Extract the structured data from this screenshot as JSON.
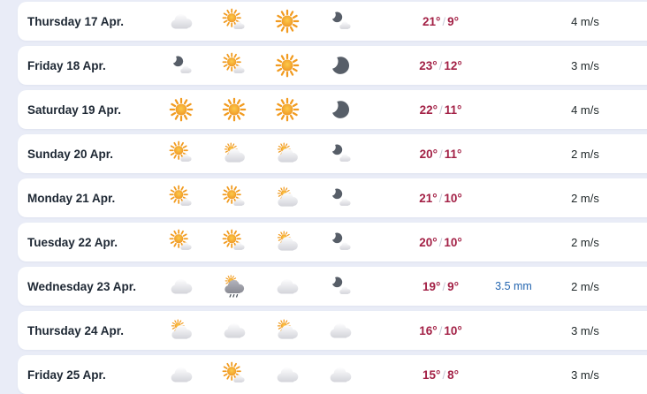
{
  "colors": {
    "background": "#e9ecf7",
    "card": "#ffffff",
    "day_text": "#1d2733",
    "temperature_text": "#a32146",
    "precipitation_text": "#2566b0",
    "wind_text": "#21292b",
    "sun": "#f29d25",
    "moon": "#575e68"
  },
  "forecast": {
    "temp_separator": "/",
    "rows": [
      {
        "day": "Thursday 17 Apr.",
        "icons": [
          "cloudy",
          "fair-day",
          "clear-day",
          "fair-night"
        ],
        "temp_high": "21°",
        "temp_low": "9°",
        "precipitation": "",
        "wind": "4 m/s"
      },
      {
        "day": "Friday 18 Apr.",
        "icons": [
          "fair-night",
          "fair-day",
          "clear-day",
          "clear-night"
        ],
        "temp_high": "23°",
        "temp_low": "12°",
        "precipitation": "",
        "wind": "3 m/s"
      },
      {
        "day": "Saturday 19 Apr.",
        "icons": [
          "clear-day",
          "clear-day",
          "clear-day",
          "clear-night"
        ],
        "temp_high": "22°",
        "temp_low": "11°",
        "precipitation": "",
        "wind": "4 m/s"
      },
      {
        "day": "Sunday 20 Apr.",
        "icons": [
          "fair-day",
          "partly-cloudy-day",
          "partly-cloudy-day",
          "fair-night"
        ],
        "temp_high": "20°",
        "temp_low": "11°",
        "precipitation": "",
        "wind": "2 m/s"
      },
      {
        "day": "Monday 21 Apr.",
        "icons": [
          "fair-day",
          "fair-day",
          "partly-cloudy-day",
          "fair-night"
        ],
        "temp_high": "21°",
        "temp_low": "10°",
        "precipitation": "",
        "wind": "2 m/s"
      },
      {
        "day": "Tuesday 22 Apr.",
        "icons": [
          "fair-day",
          "fair-day",
          "partly-cloudy-day",
          "fair-night"
        ],
        "temp_high": "20°",
        "temp_low": "10°",
        "precipitation": "",
        "wind": "2 m/s"
      },
      {
        "day": "Wednesday 23 Apr.",
        "icons": [
          "cloudy",
          "rain-showers-day",
          "cloudy",
          "fair-night"
        ],
        "temp_high": "19°",
        "temp_low": "9°",
        "precipitation": "3.5 mm",
        "wind": "2 m/s"
      },
      {
        "day": "Thursday 24 Apr.",
        "icons": [
          "partly-cloudy-day",
          "cloudy",
          "partly-cloudy-day",
          "cloudy"
        ],
        "temp_high": "16°",
        "temp_low": "10°",
        "precipitation": "",
        "wind": "3 m/s"
      },
      {
        "day": "Friday 25 Apr.",
        "icons": [
          "cloudy",
          "fair-day",
          "cloudy",
          "cloudy"
        ],
        "temp_high": "15°",
        "temp_low": "8°",
        "precipitation": "",
        "wind": "3 m/s"
      }
    ]
  }
}
